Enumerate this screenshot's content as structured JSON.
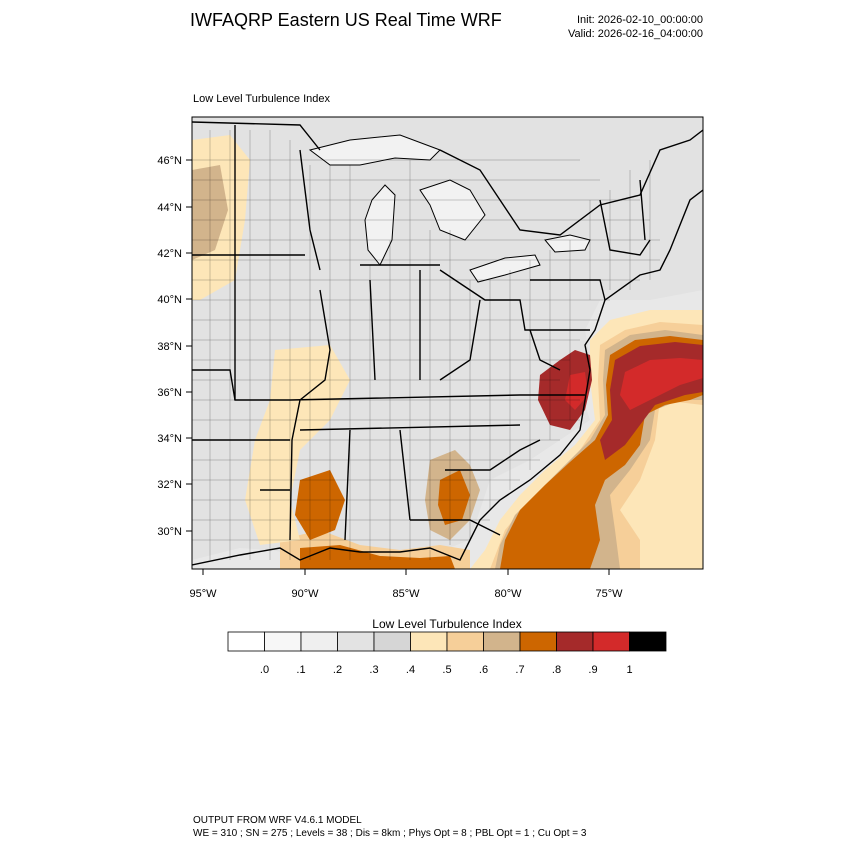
{
  "header": {
    "title": "IWFAQRP Eastern US Real Time WRF",
    "init": "Init: 2026-02-10_00:00:00",
    "valid": "Valid: 2026-02-16_04:00:00"
  },
  "map": {
    "field_label": "Low Level Turbulence Index",
    "lat_labels": [
      "46°N",
      "44°N",
      "42°N",
      "40°N",
      "38°N",
      "36°N",
      "34°N",
      "32°N",
      "30°N"
    ],
    "lon_labels": [
      "95°W",
      "90°W",
      "85°W",
      "80°W",
      "75°W"
    ],
    "colors": {
      "land_fill": "#e3e3e3",
      "lake_fill": "#f4f4f4",
      "ocean_fill": "#ececec",
      "border": "#000000"
    }
  },
  "colorbar": {
    "title": "Low Level Turbulence Index",
    "tick_labels": [
      ".0",
      ".1",
      ".2",
      ".3",
      ".4",
      ".5",
      ".6",
      ".7",
      ".8",
      ".9",
      "1"
    ],
    "colors": [
      "#ffffff",
      "#f7f7f7",
      "#efefef",
      "#e3e3e3",
      "#d6d6d6",
      "#fde6b8",
      "#f6cf99",
      "#d2b48c",
      "#cd6600",
      "#a52a2a",
      "#d32a2a",
      "#000000"
    ]
  },
  "footer": {
    "line1": "OUTPUT FROM WRF V4.6.1 MODEL",
    "line2": "WE = 310 ; SN = 275 ; Levels = 38 ; Dis = 8km ; Phys Opt = 8 ; PBL Opt = 1 ; Cu Opt = 3"
  }
}
